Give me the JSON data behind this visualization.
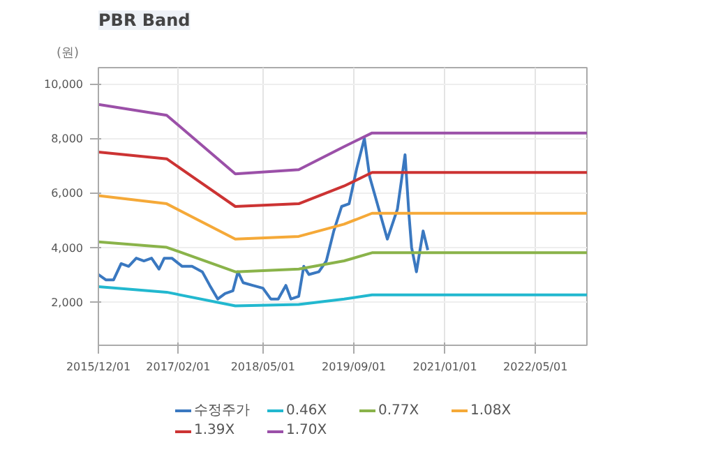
{
  "chart_data": {
    "type": "line",
    "title": "PBR Band",
    "ylabel": "(원)",
    "xlim": [
      "2015-12-01",
      "2023-02-01"
    ],
    "ylim": [
      400,
      10600
    ],
    "xticks": [
      {
        "value": "2015-12-01",
        "label": "2015/12/01"
      },
      {
        "value": "2017-02-01",
        "label": "2017/02/01"
      },
      {
        "value": "2018-05-01",
        "label": "2018/05/01"
      },
      {
        "value": "2019-09-01",
        "label": "2019/09/01"
      },
      {
        "value": "2021-01-01",
        "label": "2021/01/01"
      },
      {
        "value": "2022-05-01",
        "label": "2022/05/01"
      }
    ],
    "yticks": [
      {
        "value": 2000,
        "label": "2,000"
      },
      {
        "value": 4000,
        "label": "4,000"
      },
      {
        "value": 6000,
        "label": "6,000"
      },
      {
        "value": 8000,
        "label": "8,000"
      },
      {
        "value": 10000,
        "label": "10,000"
      }
    ],
    "grid": true,
    "legend": "bottom",
    "marker": "none",
    "line_style": "solid",
    "series": [
      {
        "name": "수정주가",
        "color": "#3a78c0",
        "x": [
          "2015-12-01",
          "2016-01-11",
          "2016-02-20",
          "2016-04-01",
          "2016-05-11",
          "2016-06-21",
          "2016-08-01",
          "2016-09-11",
          "2016-10-21",
          "2016-11-18",
          "2016-12-29",
          "2017-02-22",
          "2017-04-16",
          "2017-06-10",
          "2017-07-20",
          "2017-09-01",
          "2017-10-10",
          "2017-11-21",
          "2017-12-18",
          "2018-01-15",
          "2018-03-07",
          "2018-05-01",
          "2018-06-12",
          "2018-07-22",
          "2018-09-01",
          "2018-09-28",
          "2018-11-09",
          "2018-12-06",
          "2019-01-03",
          "2019-02-25",
          "2019-04-06",
          "2019-05-16",
          "2019-06-27",
          "2019-08-06",
          "2019-09-16",
          "2019-10-27",
          "2019-11-24",
          "2020-02-27",
          "2020-04-21",
          "2020-06-01",
          "2020-06-22",
          "2020-07-06",
          "2020-08-01",
          "2020-09-06",
          "2020-10-01"
        ],
        "values": [
          3000,
          2800,
          2800,
          3400,
          3300,
          3600,
          3500,
          3600,
          3200,
          3600,
          3600,
          3300,
          3300,
          3100,
          2600,
          2100,
          2300,
          2400,
          3100,
          2700,
          2600,
          2500,
          2100,
          2100,
          2600,
          2100,
          2200,
          3300,
          3000,
          3100,
          3500,
          4600,
          5500,
          5600,
          6900,
          8000,
          6600,
          4300,
          5400,
          7400,
          5200,
          4000,
          3100,
          4600,
          3900
        ]
      },
      {
        "name": "0.46X",
        "color": "#22b8cf",
        "x": [
          "2015-12-01",
          "2016-12-01",
          "2017-12-04",
          "2018-11-09",
          "2019-07-10",
          "2019-12-07",
          "2023-02-01"
        ],
        "values": [
          2550,
          2350,
          1850,
          1900,
          2100,
          2250,
          2250
        ]
      },
      {
        "name": "0.77X",
        "color": "#8ab34a",
        "x": [
          "2015-12-01",
          "2016-12-01",
          "2017-12-04",
          "2018-11-09",
          "2019-07-10",
          "2019-12-07",
          "2023-02-01"
        ],
        "values": [
          4200,
          4000,
          3100,
          3200,
          3500,
          3800,
          3800
        ]
      },
      {
        "name": "1.08X",
        "color": "#f5a938",
        "x": [
          "2015-12-01",
          "2016-12-01",
          "2017-12-04",
          "2018-11-09",
          "2019-07-10",
          "2019-12-07",
          "2023-02-01"
        ],
        "values": [
          5900,
          5600,
          4300,
          4400,
          4850,
          5250,
          5250
        ]
      },
      {
        "name": "1.39X",
        "color": "#cc3333",
        "x": [
          "2015-12-01",
          "2016-12-01",
          "2017-12-04",
          "2018-11-09",
          "2019-07-10",
          "2019-12-07",
          "2023-02-01"
        ],
        "values": [
          7500,
          7250,
          5500,
          5600,
          6250,
          6750,
          6750
        ]
      },
      {
        "name": "1.70X",
        "color": "#9b50a8",
        "x": [
          "2015-12-01",
          "2016-12-01",
          "2017-12-04",
          "2018-11-09",
          "2019-07-10",
          "2019-12-07",
          "2023-02-01"
        ],
        "values": [
          9250,
          8850,
          6700,
          6850,
          7700,
          8200,
          8200
        ]
      }
    ]
  }
}
